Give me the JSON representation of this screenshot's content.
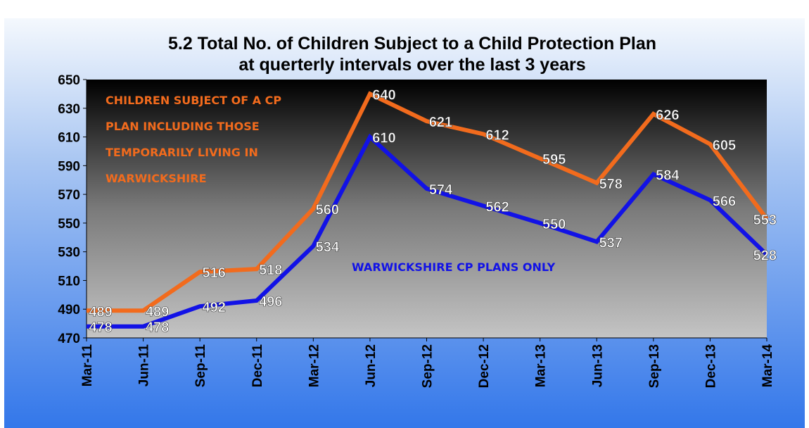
{
  "chart_data": {
    "type": "line",
    "title": [
      "5.2  Total No. of Children Subject to a Child Protection Plan",
      "at querterly intervals over the last 3 years"
    ],
    "categories": [
      "Mar-11",
      "Jun-11",
      "Sep-11",
      "Dec-11",
      "Mar-12",
      "Jun-12",
      "Sep-12",
      "Dec-12",
      "Mar-13",
      "Jun-13",
      "Sep-13",
      "Dec-13",
      "Mar-14"
    ],
    "series": [
      {
        "name": "CHILDREN SUBJECT OF A CP PLAN INCLUDING THOSE TEMPORARILY LIVING IN WARWICKSHIRE",
        "color": "#f26b1d",
        "values": [
          489,
          489,
          516,
          518,
          560,
          640,
          621,
          612,
          595,
          578,
          626,
          605,
          553
        ]
      },
      {
        "name": "WARWICKSHIRE CP PLANS ONLY",
        "color": "#1212e6",
        "values": [
          478,
          478,
          492,
          496,
          534,
          610,
          574,
          562,
          550,
          537,
          584,
          566,
          528
        ]
      }
    ],
    "ylim": [
      470,
      650
    ],
    "yticks": [
      470,
      490,
      510,
      530,
      550,
      570,
      590,
      610,
      630,
      650
    ]
  }
}
